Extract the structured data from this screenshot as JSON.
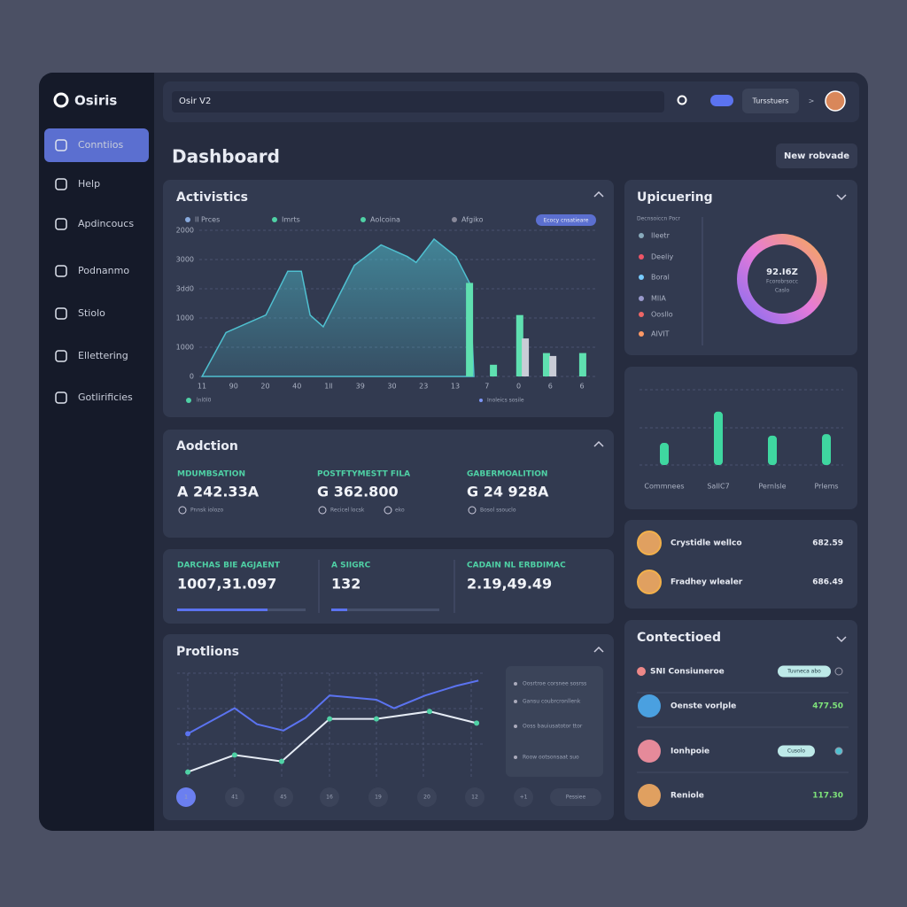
{
  "sidebar": {
    "brand": "Osiris",
    "nav": [
      "Conntiios",
      "Help",
      "Apdincoucs",
      "Podnanmo",
      "Stiolo",
      "Ellettering",
      "Gotlirificies"
    ]
  },
  "topbar": {
    "search": "Osir V2",
    "button": "Tursstuers",
    "chevron": ">"
  },
  "header": {
    "title": "Dashboard",
    "button": "New robvade"
  },
  "activity": {
    "title": "Activistics",
    "legend": [
      "ll Prces",
      "Imrts",
      "Aolcoina",
      "Afgiko"
    ],
    "pill": "Ecocy cnsatieare",
    "y_labels": [
      "2000",
      "3000",
      "3dd0",
      "1000",
      "1000",
      "0"
    ],
    "x_labels": [
      "11",
      "90",
      "20",
      "40",
      "1ll",
      "39",
      "30",
      "23",
      "13",
      "7",
      "0",
      "6",
      "6"
    ],
    "footer": [
      "lnl0l0",
      "Inoleics sosile"
    ],
    "chart": {
      "type": "area",
      "xlim": [
        0,
        100
      ],
      "ylim": [
        0,
        5
      ],
      "area": {
        "color": "#4fc0d0",
        "x": [
          0.7,
          6.7,
          16.7,
          22.2,
          25.6,
          27.8,
          31.1,
          38.9,
          45.6,
          52.2,
          54.4,
          58.9,
          64.4,
          67.8,
          68.9
        ],
        "values": [
          0,
          1.5,
          2.1,
          3.6,
          3.6,
          2.1,
          1.7,
          3.8,
          4.5,
          4.1,
          3.9,
          4.7,
          4.1,
          3.2,
          0
        ]
      },
      "bars": [
        {
          "color": "#5fe0b0",
          "x": [
            67.8,
            73.8,
            80.4,
            87.1,
            96.2
          ],
          "values": [
            3.2,
            0.4,
            2.1,
            0.8,
            0.8
          ]
        },
        {
          "color": "#c9ccd6",
          "x": [
            81.8,
            88.7
          ],
          "values": [
            1.3,
            0.7
          ]
        }
      ]
    }
  },
  "upicuering": {
    "title": "Upicuering",
    "legend_header": "Decnsoiccn Pocr",
    "items": [
      "Ileetr",
      "Deeliy",
      "Boral",
      "MllA",
      "Oosllo",
      "AIVIT"
    ],
    "center": [
      "92.I6Z",
      "Fcorobrsocc",
      "Caslo"
    ]
  },
  "bar_card": {
    "type": "bar",
    "categories": [
      "Commnees",
      "SaIIC7",
      "Pernlsle",
      "Prlems"
    ],
    "values": [
      0.58,
      1.4,
      0.77,
      0.81
    ],
    "ylim": [
      0,
      2
    ],
    "color": "#3fd7a0"
  },
  "aodction": {
    "title": "Aodction",
    "stats": [
      {
        "label": "MDUMBSATION",
        "value": "A 242.33A",
        "sub": "Pnnsk iolozo"
      },
      {
        "label": "POSTFTYMESTT FILA",
        "value": "G 362.800",
        "sub": "Recicel locsk",
        "extra": "eko"
      },
      {
        "label": "GABERMOALITION",
        "value": "G 24 928A",
        "sub": "Bosol ssouclo"
      }
    ]
  },
  "stats_row": [
    {
      "label": "DARCHAS BIE AGJAENT",
      "value": "1007,31.097"
    },
    {
      "label": "A SIIGRC",
      "value": "132"
    },
    {
      "label": "CADAIN NL ERBDIMAC",
      "value": "2.19,49.49"
    }
  ],
  "protlions": {
    "title": "Protlions",
    "chart": {
      "type": "line",
      "xlim": [
        0,
        100
      ],
      "ylim": [
        0,
        100
      ],
      "series": [
        {
          "color": "#5b73f0",
          "x": [
            3.5,
            18.8,
            26.1,
            34.8,
            42,
            49.9,
            65.2,
            71,
            81.2,
            91.3,
            98.6
          ],
          "values": [
            43,
            67,
            52,
            46,
            58,
            79,
            75,
            67,
            79,
            88,
            93
          ]
        },
        {
          "color": "#e6ecf5",
          "x": [
            3.5,
            18.8,
            34.2,
            49.9,
            65.2,
            82.6,
            98
          ],
          "values": [
            7,
            23,
            17,
            57,
            57,
            64,
            53
          ]
        }
      ]
    },
    "tooltip": [
      "Oosrtroe corsnee sosrss",
      "Gansu coubrcronllenk",
      "Ooss bauiusatotor ttor",
      "Roow ootsonsaat suo"
    ],
    "pages": [
      "1",
      "41",
      "45",
      "16",
      "19",
      "20",
      "12",
      "+1"
    ],
    "page_button": "Pessiee"
  },
  "users": [
    {
      "name": "Crystidle wellco",
      "value": "682.59"
    },
    {
      "name": "Fradhey wlealer",
      "value": "686.49"
    }
  ],
  "contectioed": {
    "title": "Contectioed",
    "rows": [
      {
        "name": "SNI Consiuneroe",
        "pill": "Tuvneca abo"
      },
      {
        "name": "Oenste vorlple",
        "value": "477.50"
      },
      {
        "name": "Ionhpoie",
        "pill": "Cusolo"
      },
      {
        "name": "Reniole",
        "value": "117.30"
      }
    ]
  }
}
